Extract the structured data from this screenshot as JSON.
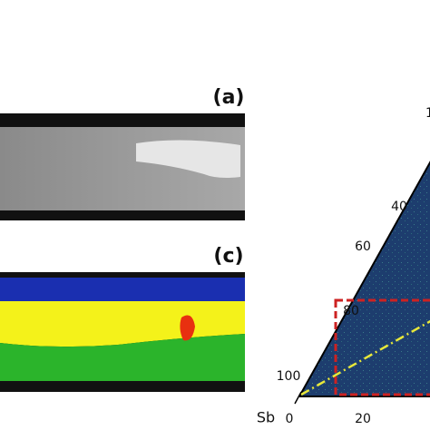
{
  "panels": [
    {
      "label": "(a)"
    },
    {
      "label": "(c)"
    }
  ],
  "ternary": {
    "top_tick": "1",
    "left_ticks": [
      "40",
      "60",
      "80",
      "100"
    ],
    "corner_label": "Sb",
    "bottom_ticks": [
      "0",
      "20"
    ]
  }
}
